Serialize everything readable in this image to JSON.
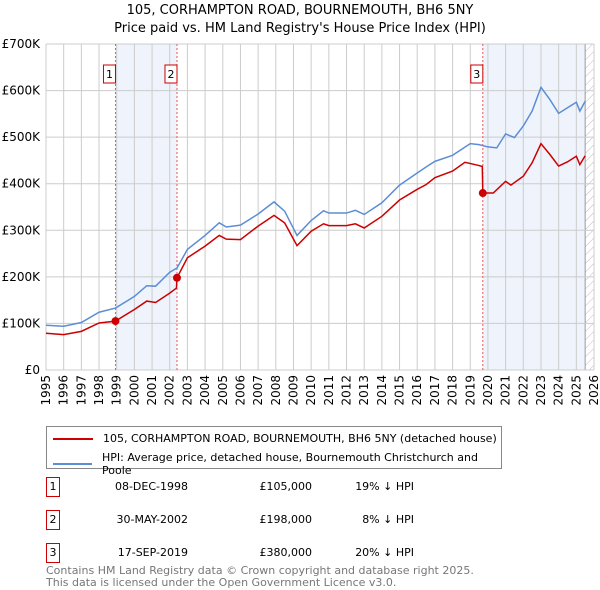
{
  "title": "105, CORHAMPTON ROAD, BOURNEMOUTH, BH6 5NY",
  "subtitle": "Price paid vs. HM Land Registry's House Price Index (HPI)",
  "chart_data": {
    "type": "line",
    "ylim": [
      0,
      700000
    ],
    "xlim": [
      1995,
      2026
    ],
    "yticks": [
      {
        "v": 0,
        "label": "£0"
      },
      {
        "v": 100000,
        "label": "£100K"
      },
      {
        "v": 200000,
        "label": "£200K"
      },
      {
        "v": 300000,
        "label": "£300K"
      },
      {
        "v": 400000,
        "label": "£400K"
      },
      {
        "v": 500000,
        "label": "£500K"
      },
      {
        "v": 600000,
        "label": "£600K"
      },
      {
        "v": 700000,
        "label": "£700K"
      }
    ],
    "xticks": [
      "1995",
      "1996",
      "1997",
      "1998",
      "1999",
      "2000",
      "2001",
      "2002",
      "2003",
      "2004",
      "2005",
      "2006",
      "2007",
      "2008",
      "2009",
      "2010",
      "2011",
      "2012",
      "2013",
      "2014",
      "2015",
      "2016",
      "2017",
      "2018",
      "2019",
      "2020",
      "2021",
      "2022",
      "2023",
      "2024",
      "2025",
      "2026"
    ],
    "grid": true,
    "series": [
      {
        "name": "105, CORHAMPTON ROAD, BOURNEMOUTH, BH6 5NY (detached house)",
        "color": "#cc0000",
        "x": [
          1995,
          1996,
          1997,
          1998,
          1998.93,
          2000,
          2000.7,
          2001.2,
          2002,
          2002.38,
          2002.41,
          2003,
          2004,
          2004.8,
          2005.2,
          2006,
          2007,
          2007.9,
          2008.5,
          2009.2,
          2010,
          2010.7,
          2011,
          2012,
          2012.5,
          2013,
          2014,
          2015,
          2016,
          2016.5,
          2017,
          2018,
          2018.7,
          2019.5,
          2019.68,
          2019.71,
          2020.3,
          2021,
          2021.3,
          2022,
          2022.5,
          2023,
          2023.5,
          2024,
          2024.5,
          2025,
          2025.2,
          2025.5
        ],
        "y": [
          79000,
          76000,
          83000,
          101000,
          105000,
          130000,
          148000,
          145000,
          165000,
          176000,
          198000,
          241000,
          266000,
          289000,
          281000,
          280000,
          309000,
          332000,
          316000,
          267000,
          298000,
          314000,
          310000,
          310000,
          314000,
          305000,
          330000,
          365000,
          388000,
          398000,
          413000,
          427000,
          446000,
          439000,
          437000,
          380000,
          380000,
          405000,
          397000,
          416000,
          445000,
          486000,
          463000,
          438000,
          447000,
          459000,
          441000,
          460000
        ]
      },
      {
        "name": "HPI: Average price, detached house, Bournemouth Christchurch and Poole",
        "color": "#5b8ed6",
        "x": [
          1995,
          1996,
          1997,
          1998,
          1998.93,
          2000,
          2000.7,
          2001.2,
          2002,
          2002.41,
          2003,
          2004,
          2004.8,
          2005.2,
          2006,
          2007,
          2007.9,
          2008.5,
          2009.2,
          2010,
          2010.7,
          2011,
          2012,
          2012.5,
          2013,
          2014,
          2015,
          2016,
          2016.5,
          2017,
          2018,
          2019,
          2019.5,
          2020,
          2020.5,
          2021,
          2021.5,
          2022,
          2022.5,
          2023,
          2023.5,
          2024,
          2024.5,
          2025,
          2025.2,
          2025.5
        ],
        "y": [
          96000,
          94000,
          102000,
          124000,
          133000,
          158000,
          181000,
          180000,
          210000,
          219000,
          259000,
          289000,
          316000,
          307000,
          311000,
          335000,
          361000,
          341000,
          289000,
          321000,
          342000,
          337000,
          337000,
          343000,
          334000,
          359000,
          397000,
          423000,
          436000,
          448000,
          461000,
          486000,
          484000,
          479000,
          477000,
          507000,
          499000,
          524000,
          556000,
          607000,
          581000,
          551000,
          563000,
          575000,
          556000,
          577000
        ]
      }
    ],
    "sales": [
      {
        "id": "1",
        "x": 1998.93,
        "y": 105000,
        "date": "08-DEC-1998",
        "price": "£105,000",
        "hpi": "19% ↓ HPI"
      },
      {
        "id": "2",
        "x": 2002.41,
        "y": 198000,
        "date": "30-MAY-2002",
        "price": "£198,000",
        "hpi": "8% ↓ HPI"
      },
      {
        "id": "3",
        "x": 2019.71,
        "y": 380000,
        "date": "17-SEP-2019",
        "price": "£380,000",
        "hpi": "20% ↓ HPI"
      }
    ],
    "shaded": [
      [
        1998.93,
        2002.41
      ],
      [
        2019.71,
        2025.5
      ]
    ],
    "hatched_from": 2025.5
  },
  "legend": {
    "red": "105, CORHAMPTON ROAD, BOURNEMOUTH, BH6 5NY (detached house)",
    "blue": "HPI: Average price, detached house, Bournemouth Christchurch and Poole"
  },
  "footer": [
    "Contains HM Land Registry data © Crown copyright and database right 2025.",
    "This data is licensed under the Open Government Licence v3.0."
  ]
}
